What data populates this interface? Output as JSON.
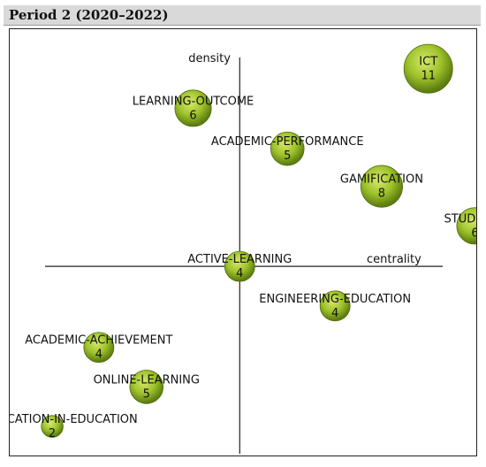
{
  "header": {
    "title": "Period 2 (2020–2022)"
  },
  "chart_data": {
    "type": "scatter",
    "title": "",
    "xlabel": "centrality",
    "ylabel": "density",
    "xlim": [
      -222,
      230
    ],
    "ylim": [
      -198,
      246
    ],
    "grid": false,
    "points": [
      {
        "label": "ICT",
        "count": "11",
        "x": 182,
        "y": 205
      },
      {
        "label": "LEARNING-OUTCOME",
        "count": "6",
        "x": -45,
        "y": 164
      },
      {
        "label": "ACADEMIC-PERFORMANCE",
        "count": "5",
        "x": 46,
        "y": 122
      },
      {
        "label": "GAMIFICATION",
        "count": "8",
        "x": 137,
        "y": 83
      },
      {
        "label": "STUDENTS",
        "count": "6",
        "x": 227,
        "y": 42
      },
      {
        "label": "ACTIVE-LEARNING",
        "count": "4",
        "x": 0,
        "y": 0
      },
      {
        "label": "ENGINEERING-EDUCATION",
        "count": "4",
        "x": 92,
        "y": -41
      },
      {
        "label": "ACADEMIC-ACHIEVEMENT",
        "count": "4",
        "x": -136,
        "y": -84
      },
      {
        "label": "ONLINE-LEARNING",
        "count": "5",
        "x": -90,
        "y": -125
      },
      {
        "label": "GAMIFICATION-IN-EDUCATION",
        "count": "2",
        "x": -181,
        "y": -166
      }
    ]
  }
}
